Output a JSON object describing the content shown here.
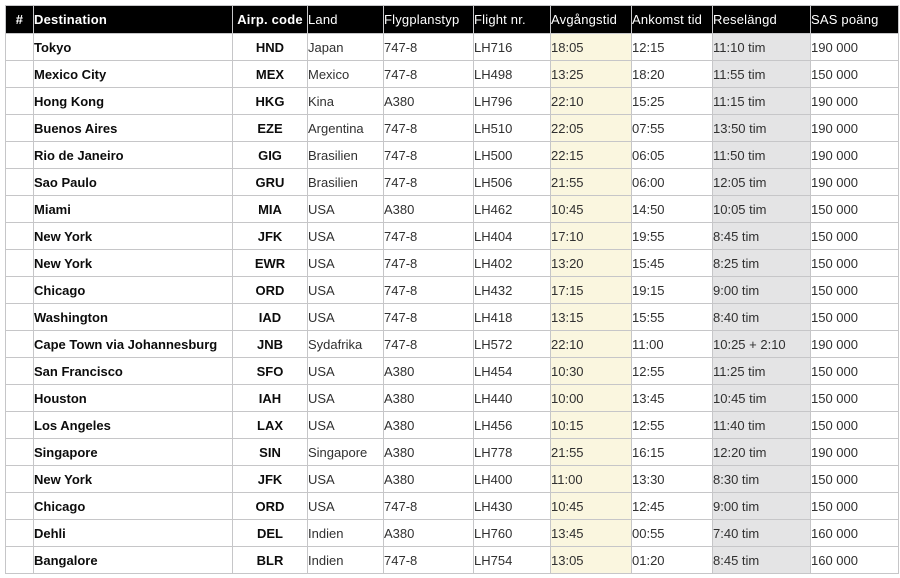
{
  "table": {
    "header": {
      "bg": "#000000",
      "text_color": "#ffffff",
      "columns": [
        {
          "key": "num",
          "label": "#"
        },
        {
          "key": "destination",
          "label": "Destination"
        },
        {
          "key": "airp_code",
          "label": "Airp. code"
        },
        {
          "key": "land",
          "label": "Land"
        },
        {
          "key": "flygplanstyp",
          "label": "Flygplanstyp"
        },
        {
          "key": "flight_nr",
          "label": "Flight nr."
        },
        {
          "key": "avgangstid",
          "label": "Avgångstid"
        },
        {
          "key": "ankomst_tid",
          "label": "Ankomst tid"
        },
        {
          "key": "reselangd",
          "label": "Reselängd"
        },
        {
          "key": "sas_poang",
          "label": "SAS poäng"
        }
      ]
    },
    "colors": {
      "avgangstid_column_bg": "#faf6df",
      "reselangd_column_bg": "#e4e4e5",
      "border": "#c6c6c8"
    },
    "rows": [
      {
        "num": "",
        "destination": "Tokyo",
        "airp_code": "HND",
        "land": "Japan",
        "flygplanstyp": "747-8",
        "flight_nr": "LH716",
        "avgangstid": "18:05",
        "ankomst_tid": "12:15",
        "reselangd": "11:10 tim",
        "sas_poang": "190 000"
      },
      {
        "num": "",
        "destination": "Mexico City",
        "airp_code": "MEX",
        "land": "Mexico",
        "flygplanstyp": "747-8",
        "flight_nr": "LH498",
        "avgangstid": "13:25",
        "ankomst_tid": "18:20",
        "reselangd": "11:55 tim",
        "sas_poang": "150 000"
      },
      {
        "num": "",
        "destination": "Hong Kong",
        "airp_code": "HKG",
        "land": "Kina",
        "flygplanstyp": "A380",
        "flight_nr": "LH796",
        "avgangstid": "22:10",
        "ankomst_tid": "15:25",
        "reselangd": "11:15 tim",
        "sas_poang": "190 000"
      },
      {
        "num": "",
        "destination": "Buenos Aires",
        "airp_code": "EZE",
        "land": "Argentina",
        "flygplanstyp": "747-8",
        "flight_nr": "LH510",
        "avgangstid": "22:05",
        "ankomst_tid": "07:55",
        "reselangd": "13:50 tim",
        "sas_poang": "190 000"
      },
      {
        "num": "",
        "destination": "Rio de Janeiro",
        "airp_code": "GIG",
        "land": "Brasilien",
        "flygplanstyp": "747-8",
        "flight_nr": "LH500",
        "avgangstid": "22:15",
        "ankomst_tid": "06:05",
        "reselangd": "11:50 tim",
        "sas_poang": "190 000"
      },
      {
        "num": "",
        "destination": "Sao Paulo",
        "airp_code": "GRU",
        "land": "Brasilien",
        "flygplanstyp": "747-8",
        "flight_nr": "LH506",
        "avgangstid": "21:55",
        "ankomst_tid": "06:00",
        "reselangd": "12:05 tim",
        "sas_poang": "190 000"
      },
      {
        "num": "",
        "destination": "Miami",
        "airp_code": "MIA",
        "land": "USA",
        "flygplanstyp": "A380",
        "flight_nr": "LH462",
        "avgangstid": "10:45",
        "ankomst_tid": "14:50",
        "reselangd": "10:05 tim",
        "sas_poang": "150 000"
      },
      {
        "num": "",
        "destination": "New York",
        "airp_code": "JFK",
        "land": "USA",
        "flygplanstyp": "747-8",
        "flight_nr": "LH404",
        "avgangstid": "17:10",
        "ankomst_tid": "19:55",
        "reselangd": "8:45 tim",
        "sas_poang": "150 000"
      },
      {
        "num": "",
        "destination": "New York",
        "airp_code": "EWR",
        "land": "USA",
        "flygplanstyp": "747-8",
        "flight_nr": "LH402",
        "avgangstid": "13:20",
        "ankomst_tid": "15:45",
        "reselangd": "8:25 tim",
        "sas_poang": "150 000"
      },
      {
        "num": "",
        "destination": "Chicago",
        "airp_code": "ORD",
        "land": "USA",
        "flygplanstyp": "747-8",
        "flight_nr": "LH432",
        "avgangstid": "17:15",
        "ankomst_tid": "19:15",
        "reselangd": "9:00 tim",
        "sas_poang": "150 000"
      },
      {
        "num": "",
        "destination": "Washington",
        "airp_code": "IAD",
        "land": "USA",
        "flygplanstyp": "747-8",
        "flight_nr": "LH418",
        "avgangstid": "13:15",
        "ankomst_tid": "15:55",
        "reselangd": "8:40 tim",
        "sas_poang": "150 000"
      },
      {
        "num": "",
        "destination": "Cape Town via Johannesburg",
        "airp_code": "JNB",
        "land": "Sydafrika",
        "flygplanstyp": "747-8",
        "flight_nr": "LH572",
        "avgangstid": "22:10",
        "ankomst_tid": "11:00",
        "reselangd": "10:25 + 2:10",
        "sas_poang": "190 000"
      },
      {
        "num": "",
        "destination": "San Francisco",
        "airp_code": "SFO",
        "land": "USA",
        "flygplanstyp": "A380",
        "flight_nr": "LH454",
        "avgangstid": "10:30",
        "ankomst_tid": "12:55",
        "reselangd": "11:25 tim",
        "sas_poang": "150 000"
      },
      {
        "num": "",
        "destination": "Houston",
        "airp_code": "IAH",
        "land": "USA",
        "flygplanstyp": "A380",
        "flight_nr": "LH440",
        "avgangstid": "10:00",
        "ankomst_tid": "13:45",
        "reselangd": "10:45 tim",
        "sas_poang": "150 000"
      },
      {
        "num": "",
        "destination": "Los Angeles",
        "airp_code": "LAX",
        "land": "USA",
        "flygplanstyp": "A380",
        "flight_nr": "LH456",
        "avgangstid": "10:15",
        "ankomst_tid": "12:55",
        "reselangd": "11:40 tim",
        "sas_poang": "150 000"
      },
      {
        "num": "",
        "destination": "Singapore",
        "airp_code": "SIN",
        "land": "Singapore",
        "flygplanstyp": "A380",
        "flight_nr": "LH778",
        "avgangstid": "21:55",
        "ankomst_tid": "16:15",
        "reselangd": "12:20 tim",
        "sas_poang": "190 000"
      },
      {
        "num": "",
        "destination": "New York",
        "airp_code": "JFK",
        "land": "USA",
        "flygplanstyp": "A380",
        "flight_nr": "LH400",
        "avgangstid": "11:00",
        "ankomst_tid": "13:30",
        "reselangd": "8:30 tim",
        "sas_poang": "150 000"
      },
      {
        "num": "",
        "destination": "Chicago",
        "airp_code": "ORD",
        "land": "USA",
        "flygplanstyp": "747-8",
        "flight_nr": "LH430",
        "avgangstid": "10:45",
        "ankomst_tid": "12:45",
        "reselangd": "9:00 tim",
        "sas_poang": "150 000"
      },
      {
        "num": "",
        "destination": "Dehli",
        "airp_code": "DEL",
        "land": "Indien",
        "flygplanstyp": "A380",
        "flight_nr": "LH760",
        "avgangstid": "13:45",
        "ankomst_tid": "00:55",
        "reselangd": "7:40 tim",
        "sas_poang": "160 000"
      },
      {
        "num": "",
        "destination": "Bangalore",
        "airp_code": "BLR",
        "land": "Indien",
        "flygplanstyp": "747-8",
        "flight_nr": "LH754",
        "avgangstid": "13:05",
        "ankomst_tid": "01:20",
        "reselangd": "8:45 tim",
        "sas_poang": "160 000"
      }
    ]
  }
}
